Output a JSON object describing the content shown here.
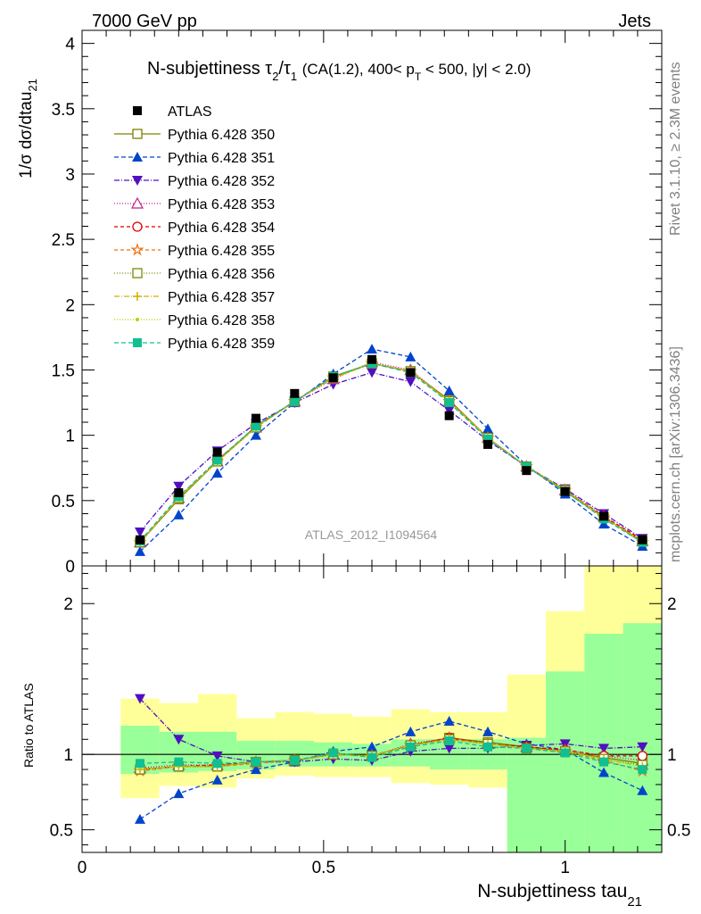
{
  "header": {
    "left": "7000 GeV pp",
    "right": "Jets"
  },
  "side_text": {
    "rivet": "Rivet 3.1.10, ≥ 2.3M events",
    "mcplots": "mcplots.cern.ch [arXiv:1306.3436]"
  },
  "chart_data": [
    {
      "type": "scatter",
      "panel": "main",
      "title": {
        "prefix": "N-subjettiness",
        "tau2": "τ",
        "tau2_sub": "2",
        "slash": "/",
        "tau1": "τ",
        "tau1_sub": "1",
        "cuts_a": "(CA(1.2), 400< p",
        "cuts_sub": "T",
        "cuts_b": " < 500, |y| < 2.0)"
      },
      "ylabel": {
        "main": "1/σ dσ/dtau",
        "sub": "21"
      },
      "watermark": "ATLAS_2012_I1094564",
      "xlim": [
        0,
        1.2
      ],
      "ylim": [
        0,
        4.1
      ],
      "y_ticks": [
        "0",
        "0.5",
        "1",
        "1.5",
        "2",
        "2.5",
        "3",
        "3.5",
        "4"
      ],
      "x": [
        0.12,
        0.2,
        0.28,
        0.36,
        0.44,
        0.52,
        0.6,
        0.68,
        0.76,
        0.84,
        0.92,
        1.0,
        1.08,
        1.16
      ],
      "data": {
        "name": "ATLAS",
        "values": [
          0.2,
          0.56,
          0.87,
          1.13,
          1.32,
          1.44,
          1.58,
          1.48,
          1.15,
          0.93,
          0.73,
          0.57,
          0.38,
          0.2
        ],
        "color": "#000000",
        "marker": "square-filled"
      },
      "series": [
        {
          "name": "Pythia 6.428 350",
          "color": "#808000",
          "dash": "",
          "marker": "square-open",
          "values": [
            0.18,
            0.51,
            0.8,
            1.07,
            1.26,
            1.45,
            1.55,
            1.49,
            1.27,
            0.98,
            0.76,
            0.57,
            0.37,
            0.19
          ]
        },
        {
          "name": "Pythia 6.428 351",
          "color": "#0044cc",
          "dash": "5,3",
          "marker": "triangle-up-filled",
          "values": [
            0.11,
            0.39,
            0.71,
            1.0,
            1.25,
            1.47,
            1.66,
            1.6,
            1.34,
            1.05,
            0.77,
            0.55,
            0.32,
            0.15
          ]
        },
        {
          "name": "Pythia 6.428 352",
          "color": "#5010c0",
          "dash": "6,2,1,2",
          "marker": "triangle-down-filled",
          "values": [
            0.26,
            0.61,
            0.88,
            1.09,
            1.25,
            1.39,
            1.48,
            1.41,
            1.19,
            0.96,
            0.76,
            0.59,
            0.4,
            0.21
          ]
        },
        {
          "name": "Pythia 6.428 353",
          "color": "#c0208a",
          "dash": "1,2",
          "marker": "triangle-up-open",
          "values": [
            0.18,
            0.52,
            0.8,
            1.06,
            1.26,
            1.43,
            1.56,
            1.5,
            1.26,
            0.98,
            0.76,
            0.58,
            0.38,
            0.19
          ]
        },
        {
          "name": "Pythia 6.428 354",
          "color": "#e00000",
          "dash": "4,3",
          "marker": "circle-open",
          "values": [
            0.18,
            0.52,
            0.81,
            1.06,
            1.26,
            1.44,
            1.55,
            1.49,
            1.26,
            0.98,
            0.76,
            0.58,
            0.38,
            0.2
          ]
        },
        {
          "name": "Pythia 6.428 355",
          "color": "#f07010",
          "dash": "4,3",
          "marker": "star-open",
          "values": [
            0.18,
            0.52,
            0.8,
            1.06,
            1.26,
            1.44,
            1.55,
            1.49,
            1.26,
            0.98,
            0.76,
            0.58,
            0.37,
            0.18
          ]
        },
        {
          "name": "Pythia 6.428 356",
          "color": "#7a8a00",
          "dash": "1,2",
          "marker": "square-open",
          "values": [
            0.18,
            0.52,
            0.8,
            1.06,
            1.26,
            1.44,
            1.55,
            1.49,
            1.26,
            0.98,
            0.76,
            0.58,
            0.37,
            0.19
          ]
        },
        {
          "name": "Pythia 6.428 357",
          "color": "#d0b000",
          "dash": "6,2,1,2",
          "marker": "cross",
          "values": [
            0.18,
            0.52,
            0.8,
            1.06,
            1.26,
            1.44,
            1.55,
            1.49,
            1.26,
            0.98,
            0.76,
            0.58,
            0.37,
            0.19
          ]
        },
        {
          "name": "Pythia 6.428 358",
          "color": "#b8d000",
          "dash": "1,2",
          "marker": "dot",
          "values": [
            0.18,
            0.52,
            0.8,
            1.06,
            1.26,
            1.44,
            1.55,
            1.49,
            1.26,
            0.98,
            0.76,
            0.58,
            0.37,
            0.19
          ]
        },
        {
          "name": "Pythia 6.428 359",
          "color": "#10c090",
          "dash": "5,3",
          "marker": "square-filled",
          "values": [
            0.19,
            0.53,
            0.81,
            1.07,
            1.26,
            1.45,
            1.55,
            1.48,
            1.25,
            0.97,
            0.76,
            0.57,
            0.36,
            0.18
          ]
        }
      ]
    },
    {
      "type": "scatter",
      "panel": "ratio",
      "ylabel": "Ratio to ATLAS",
      "xlabel": {
        "main": "N-subjettiness tau",
        "sub": "21"
      },
      "xlim": [
        0,
        1.2
      ],
      "ylim": [
        0.35,
        2.25
      ],
      "x_ticks": [
        "0",
        "0.5",
        "1"
      ],
      "y_ticks": [
        "0.5",
        "1",
        "2"
      ],
      "bins": [
        {
          "lo": 0.08,
          "hi": 0.16,
          "inner": [
            0.87,
            1.19
          ],
          "outer": [
            0.71,
            1.37
          ]
        },
        {
          "lo": 0.16,
          "hi": 0.24,
          "inner": [
            0.88,
            1.15
          ],
          "outer": [
            0.79,
            1.34
          ]
        },
        {
          "lo": 0.24,
          "hi": 0.32,
          "inner": [
            0.89,
            1.15
          ],
          "outer": [
            0.78,
            1.4
          ]
        },
        {
          "lo": 0.32,
          "hi": 0.4,
          "inner": [
            0.9,
            1.09
          ],
          "outer": [
            0.84,
            1.24
          ]
        },
        {
          "lo": 0.4,
          "hi": 0.48,
          "inner": [
            0.92,
            1.09
          ],
          "outer": [
            0.86,
            1.28
          ]
        },
        {
          "lo": 0.48,
          "hi": 0.56,
          "inner": [
            0.92,
            1.08
          ],
          "outer": [
            0.85,
            1.27
          ]
        },
        {
          "lo": 0.56,
          "hi": 0.64,
          "inner": [
            0.92,
            1.07
          ],
          "outer": [
            0.85,
            1.25
          ]
        },
        {
          "lo": 0.64,
          "hi": 0.72,
          "inner": [
            0.92,
            1.1
          ],
          "outer": [
            0.81,
            1.3
          ]
        },
        {
          "lo": 0.72,
          "hi": 0.8,
          "inner": [
            0.9,
            1.1
          ],
          "outer": [
            0.8,
            1.28
          ]
        },
        {
          "lo": 0.8,
          "hi": 0.88,
          "inner": [
            0.9,
            1.1
          ],
          "outer": [
            0.78,
            1.28
          ]
        },
        {
          "lo": 0.88,
          "hi": 0.96,
          "inner": [
            0.35,
            1.11
          ],
          "outer": [
            0.35,
            1.53
          ]
        },
        {
          "lo": 0.96,
          "hi": 1.04,
          "inner": [
            0.35,
            1.55
          ],
          "outer": [
            0.35,
            1.95
          ]
        },
        {
          "lo": 1.04,
          "hi": 1.12,
          "inner": [
            0.35,
            1.8
          ],
          "outer": [
            0.35,
            2.25
          ]
        },
        {
          "lo": 1.12,
          "hi": 1.2,
          "inner": [
            0.35,
            1.87
          ],
          "outer": [
            0.35,
            2.25
          ]
        }
      ],
      "series": [
        {
          "ref": "Pythia 6.428 350",
          "values": [
            0.9,
            0.92,
            0.92,
            0.95,
            0.96,
            1.0,
            0.99,
            1.06,
            1.11,
            1.08,
            1.05,
            1.02,
            0.98,
            0.94
          ]
        },
        {
          "ref": "Pythia 6.428 351",
          "values": [
            0.57,
            0.74,
            0.83,
            0.9,
            0.95,
            1.02,
            1.05,
            1.15,
            1.22,
            1.15,
            1.07,
            1.03,
            0.88,
            0.76
          ]
        },
        {
          "ref": "Pythia 6.428 352",
          "values": [
            1.37,
            1.1,
            0.99,
            0.95,
            0.95,
            0.97,
            0.96,
            1.02,
            1.04,
            1.04,
            1.06,
            1.07,
            1.04,
            1.05
          ]
        },
        {
          "ref": "Pythia 6.428 353",
          "values": [
            0.91,
            0.93,
            0.93,
            0.95,
            0.96,
            1.0,
            0.99,
            1.07,
            1.11,
            1.07,
            1.05,
            1.03,
            0.99,
            0.96
          ]
        },
        {
          "ref": "Pythia 6.428 354",
          "values": [
            0.9,
            0.92,
            0.93,
            0.95,
            0.96,
            1.0,
            0.99,
            1.06,
            1.11,
            1.07,
            1.05,
            1.03,
            0.99,
            0.99
          ]
        },
        {
          "ref": "Pythia 6.428 355",
          "values": [
            0.89,
            0.92,
            0.92,
            0.94,
            0.96,
            1.0,
            0.99,
            1.06,
            1.1,
            1.07,
            1.04,
            1.02,
            0.96,
            0.89
          ]
        },
        {
          "ref": "Pythia 6.428 356",
          "values": [
            0.9,
            0.92,
            0.92,
            0.95,
            0.96,
            1.0,
            0.99,
            1.06,
            1.1,
            1.07,
            1.04,
            1.02,
            0.97,
            0.93
          ]
        },
        {
          "ref": "Pythia 6.428 357",
          "values": [
            0.9,
            0.92,
            0.92,
            0.95,
            0.96,
            1.0,
            0.99,
            1.06,
            1.1,
            1.07,
            1.04,
            1.02,
            0.97,
            0.92
          ]
        },
        {
          "ref": "Pythia 6.428 358",
          "values": [
            0.9,
            0.92,
            0.92,
            0.95,
            0.96,
            1.0,
            0.99,
            1.06,
            1.1,
            1.07,
            1.04,
            1.02,
            0.97,
            0.92
          ]
        },
        {
          "ref": "Pythia 6.428 359",
          "values": [
            0.94,
            0.95,
            0.94,
            0.95,
            0.96,
            1.01,
            0.98,
            1.05,
            1.09,
            1.05,
            1.04,
            1.01,
            0.95,
            0.9
          ]
        }
      ]
    }
  ],
  "colors": {
    "band_inner": "#99ff99",
    "band_outer": "#ffff99",
    "side_text": "#808080",
    "watermark": "#999999"
  }
}
